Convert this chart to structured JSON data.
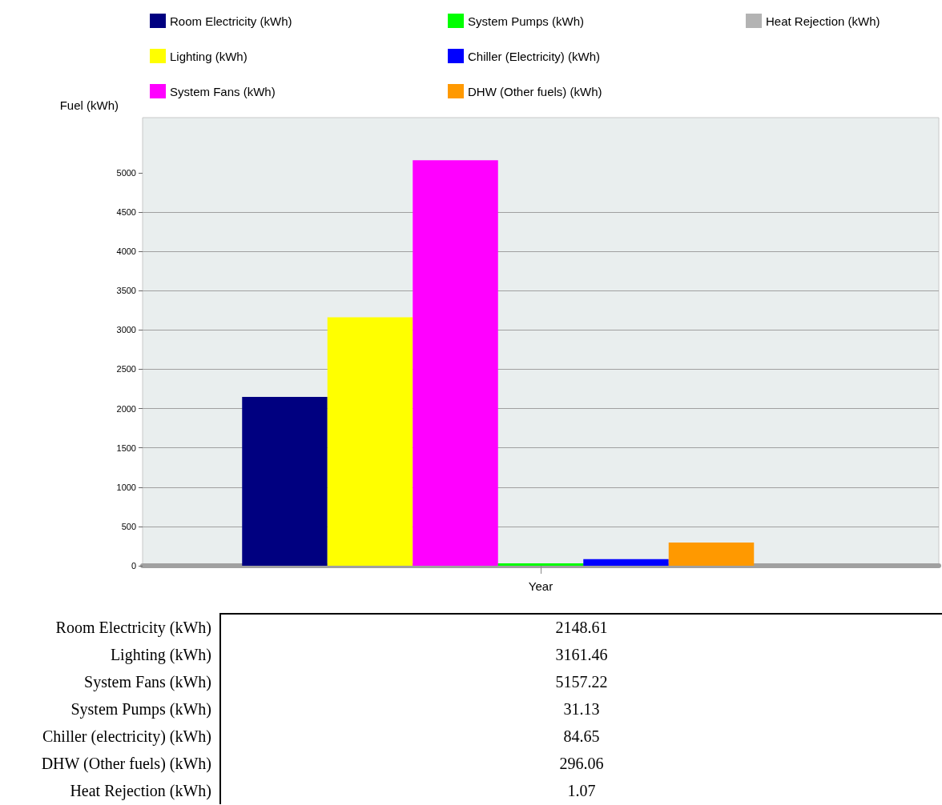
{
  "chart_data": [
    {
      "type": "bar",
      "ylabel": "Fuel (kWh)",
      "categories": [
        "Year"
      ],
      "series": [
        {
          "name": "Room Electricity (kWh)",
          "color": "#000080",
          "values": [
            2148.61
          ]
        },
        {
          "name": "Lighting (kWh)",
          "color": "#ffff00",
          "values": [
            3161.46
          ]
        },
        {
          "name": "System Fans (kWh)",
          "color": "#ff00ff",
          "values": [
            5157.22
          ]
        },
        {
          "name": "System Pumps (kWh)",
          "color": "#00ff00",
          "values": [
            31.13
          ]
        },
        {
          "name": "Chiller (Electricity) (kWh)",
          "color": "#0000ff",
          "values": [
            84.65
          ]
        },
        {
          "name": "DHW (Other fuels) (kWh)",
          "color": "#ff9900",
          "values": [
            296.06
          ]
        },
        {
          "name": "Heat Rejection (kWh)",
          "color": "#b3b3b3",
          "values": [
            1.07
          ]
        }
      ],
      "ylim": [
        0,
        5700
      ],
      "yticks": [
        0,
        500,
        1000,
        1500,
        2000,
        2500,
        3000,
        3500,
        4000,
        4500,
        5000
      ],
      "grid": "y",
      "legend": "top"
    },
    {
      "type": "other",
      "categories": [
        "Room Electricity (kWh)",
        "Lighting (kWh)",
        "System Fans (kWh)",
        "System Pumps (kWh)",
        "Chiller (electricity) (kWh)",
        "DHW (Other fuels) (kWh)",
        "Heat Rejection (kWh)"
      ],
      "values": [
        2148.61,
        3161.46,
        5157.22,
        31.13,
        84.65,
        296.06,
        1.07
      ],
      "data_labels": true
    }
  ]
}
